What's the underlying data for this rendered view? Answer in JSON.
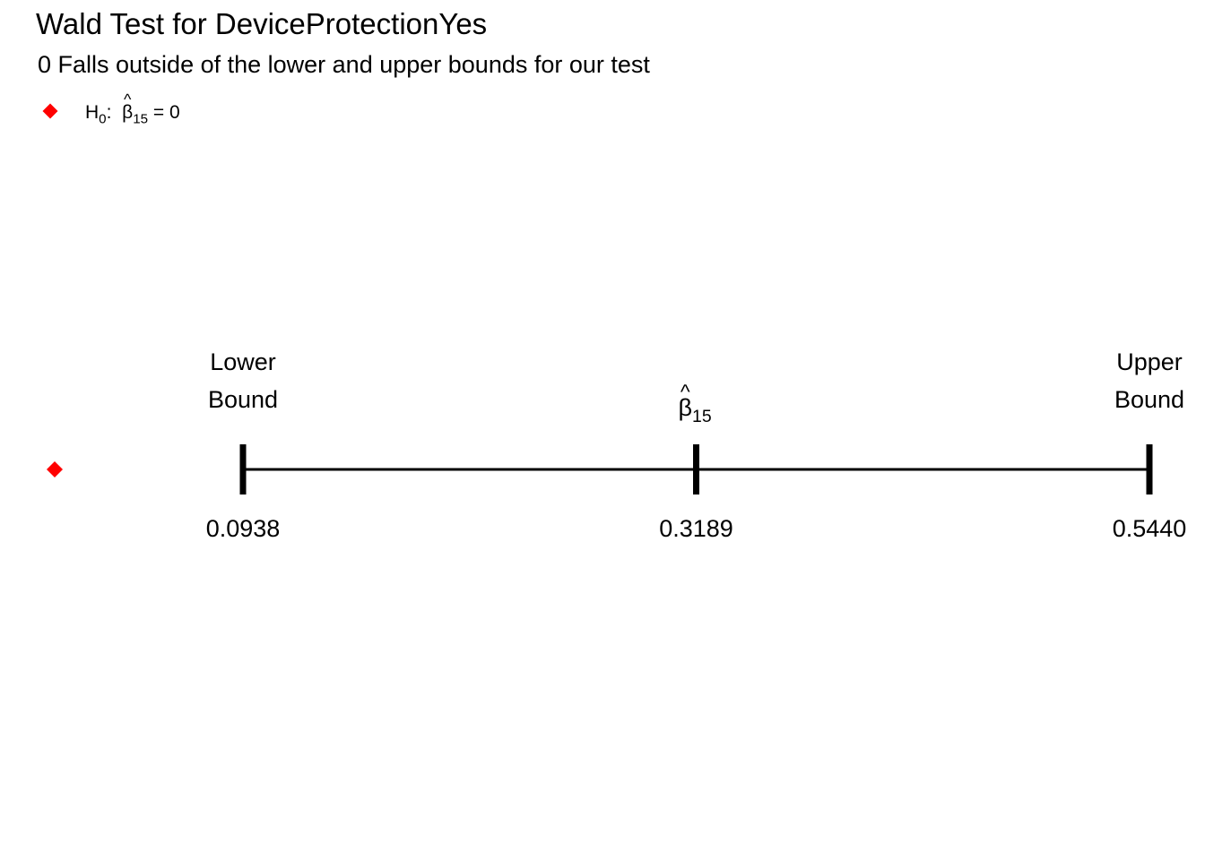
{
  "title": "Wald Test for DeviceProtectionYes",
  "subtitle": "0 Falls outside of the lower and upper bounds for our test",
  "legend": {
    "h_symbol": "H",
    "h_sub": "0",
    "colon": ":",
    "beta": "β",
    "caret": "^",
    "beta_sub": "15",
    "equals_rhs": "= 0",
    "color": "#ff0000"
  },
  "chart_data": {
    "type": "interval",
    "title": "Wald Test for DeviceProtectionYes",
    "subtitle": "0 Falls outside of the lower and upper bounds for our test",
    "xlim": [
      -0.0,
      0.544
    ],
    "null_value": 0,
    "null_color": "#ff0000",
    "interval": {
      "lower": 0.0938,
      "estimate": 0.3189,
      "upper": 0.544,
      "lower_tick_label": "0.0938",
      "estimate_tick_label": "0.3189",
      "upper_tick_label": "0.5440",
      "lower_name_line1": "Lower",
      "lower_name_line2": "Bound",
      "upper_name_line1": "Upper",
      "upper_name_line2": "Bound",
      "estimate_beta": "β",
      "estimate_caret": "^",
      "estimate_sub": "15"
    },
    "line_color": "#000000",
    "grid": false
  }
}
